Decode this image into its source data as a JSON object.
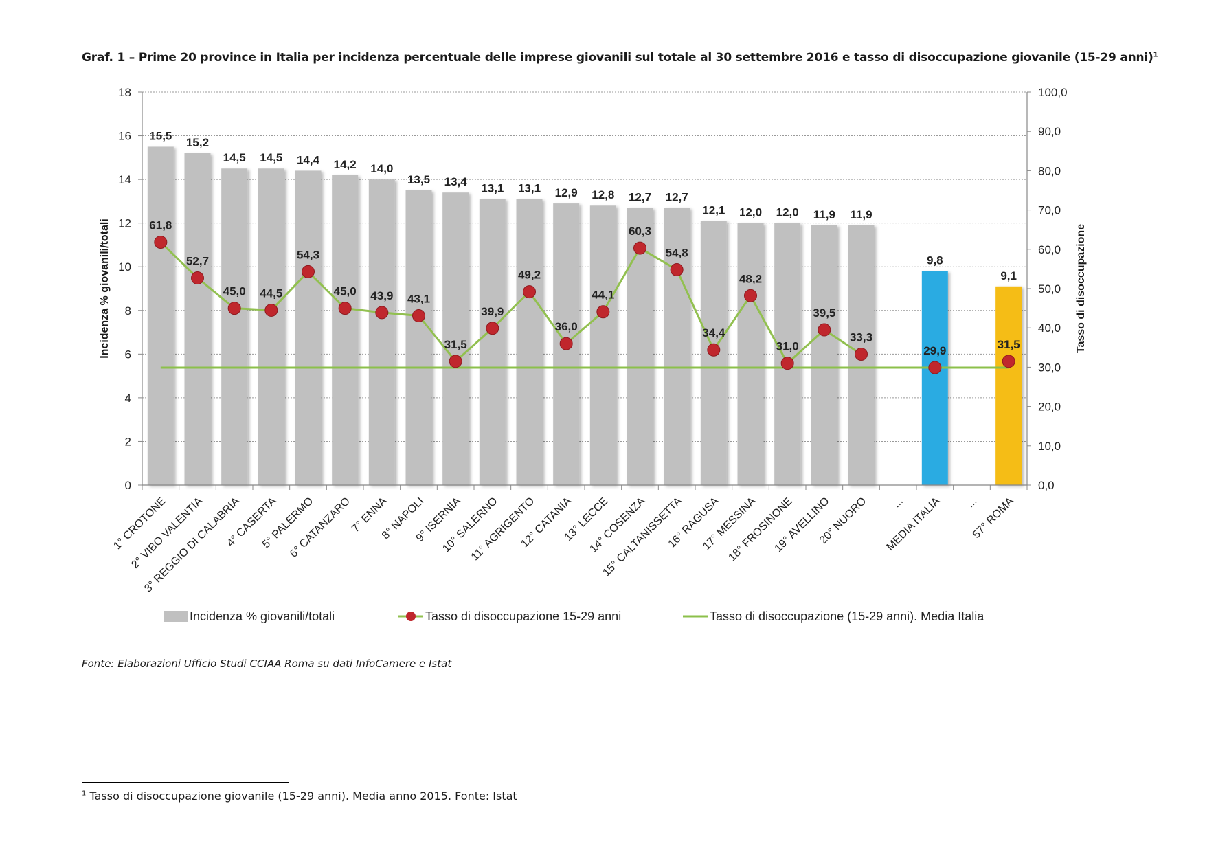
{
  "page": {
    "title": "Graf. 1 – Prime 20 province in Italia per incidenza percentuale delle imprese giovanili sul totale al 30 settembre 2016 e tasso di disoccupazione giovanile (15-29 anni)",
    "title_note": "1",
    "source": "Fonte: Elaborazioni Ufficio Studi CCIAA Roma su dati InfoCamere e Istat",
    "footnote_mark": "1",
    "footnote": "Tasso di disoccupazione giovanile (15-29 anni). Media anno 2015. Fonte: Istat"
  },
  "chart_data": {
    "type": "bar",
    "categories": [
      "1° CROTONE",
      "2° VIBO VALENTIA",
      "3° REGGIO DI CALABRIA",
      "4° CASERTA",
      "5° PALERMO",
      "6° CATANZARO",
      "7° ENNA",
      "8° NAPOLI",
      "9° ISERNIA",
      "10° SALERNO",
      "11° AGRIGENTO",
      "12° CATANIA",
      "13° LECCE",
      "14° COSENZA",
      "15° CALTANISSETTA",
      "16° RAGUSA",
      "17° MESSINA",
      "18° FROSINONE",
      "19° AVELLINO",
      "20° NUORO",
      "...",
      "MEDIA ITALIA",
      "...",
      "57° ROMA"
    ],
    "ylabel": "Incidenza % giovanili/totali",
    "y2label": "Tasso di disoccupazione",
    "ylim": [
      0,
      18
    ],
    "y2lim": [
      0,
      100
    ],
    "yticks": [
      "0",
      "2",
      "4",
      "6",
      "8",
      "10",
      "12",
      "14",
      "16",
      "18"
    ],
    "y2ticks": [
      "0,0",
      "10,0",
      "20,0",
      "30,0",
      "40,0",
      "50,0",
      "60,0",
      "70,0",
      "80,0",
      "90,0",
      "100,0"
    ],
    "grid": true,
    "legend_position": "bottom",
    "series": [
      {
        "name": "Incidenza % giovanili/totali",
        "kind": "bar",
        "axis": "left",
        "color": "#c0c0c0",
        "values": [
          15.5,
          15.2,
          14.5,
          14.5,
          14.4,
          14.2,
          14.0,
          13.5,
          13.4,
          13.1,
          13.1,
          12.9,
          12.8,
          12.7,
          12.7,
          12.1,
          12.0,
          12.0,
          11.9,
          11.9,
          null,
          9.8,
          null,
          9.1
        ],
        "labels": [
          "15,5",
          "15,2",
          "14,5",
          "14,5",
          "14,4",
          "14,2",
          "14,0",
          "13,5",
          "13,4",
          "13,1",
          "13,1",
          "12,9",
          "12,8",
          "12,7",
          "12,7",
          "12,1",
          "12,0",
          "12,0",
          "11,9",
          "11,9",
          "",
          "9,8",
          "",
          "9,1"
        ],
        "point_colors": {
          "MEDIA ITALIA": "#29abe2",
          "57° ROMA": "#f5bd14"
        }
      },
      {
        "name": "Tasso di disoccupazione 15-29 anni",
        "kind": "line-marker",
        "axis": "right",
        "line_color": "#92c050",
        "marker_color": "#c0272d",
        "values": [
          61.8,
          52.7,
          45.0,
          44.5,
          54.3,
          45.0,
          43.9,
          43.1,
          31.5,
          39.9,
          49.2,
          36.0,
          44.1,
          60.3,
          54.8,
          34.4,
          48.2,
          31.0,
          39.5,
          33.3,
          null,
          29.9,
          null,
          31.5
        ],
        "labels": [
          "61,8",
          "52,7",
          "45,0",
          "44,5",
          "54,3",
          "45,0",
          "43,9",
          "43,1",
          "31,5",
          "39,9",
          "49,2",
          "36,0",
          "44,1",
          "60,3",
          "54,8",
          "34,4",
          "48,2",
          "31,0",
          "39,5",
          "33,3",
          "",
          "29,9",
          "",
          "31,5"
        ]
      },
      {
        "name": "Tasso di disoccupazione (15-29 anni). Media Italia",
        "kind": "line",
        "axis": "right",
        "color": "#8cc04b",
        "value": 29.9
      }
    ]
  }
}
